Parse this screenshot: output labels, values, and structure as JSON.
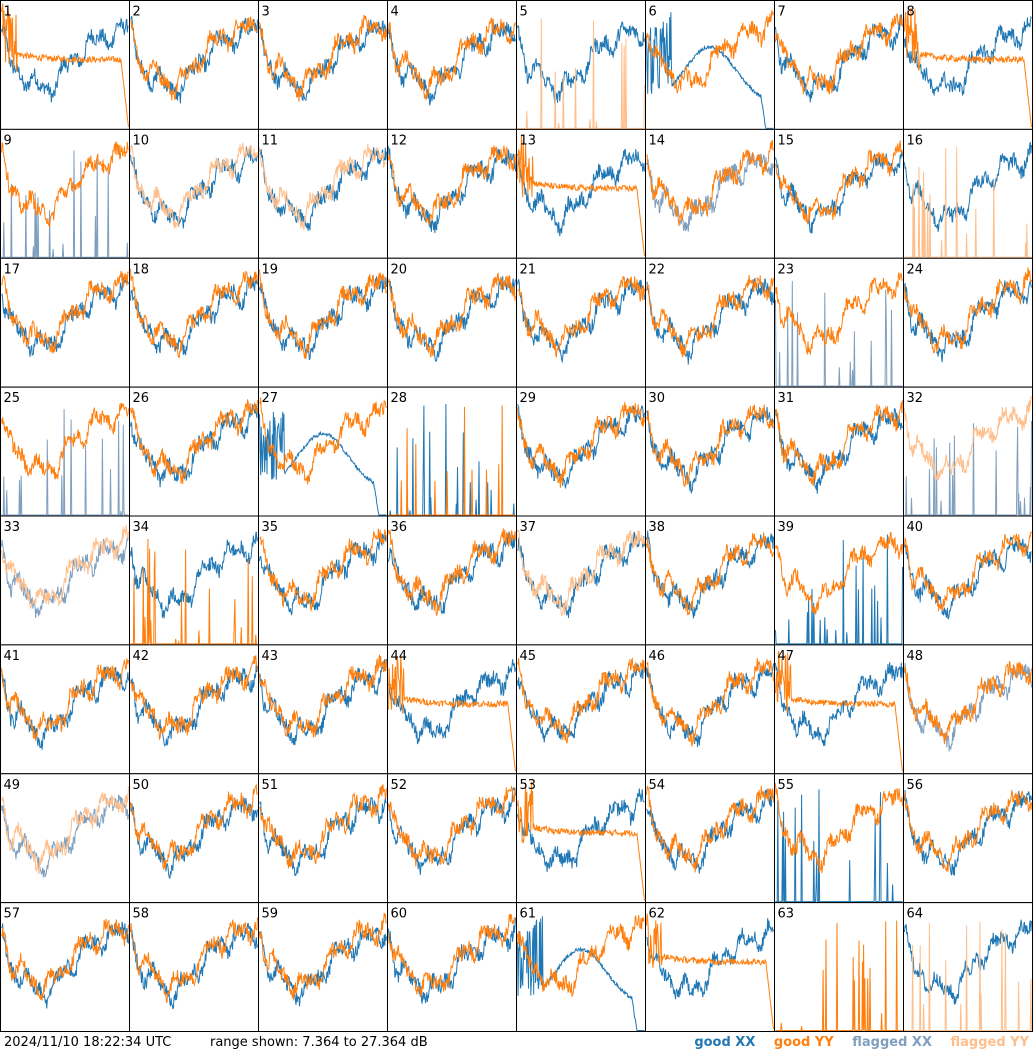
{
  "footer": {
    "timestamp": "2024/11/10 18:22:34 UTC",
    "range_label": "range shown:",
    "range_text": "7.364 to 27.364 dB"
  },
  "chart_data": {
    "type": "line",
    "grid": {
      "rows": 8,
      "cols": 8
    },
    "ylim": [
      7.364,
      27.364
    ],
    "yunit": "dB",
    "legend": [
      {
        "name": "good XX",
        "color": "#1f77b4",
        "key": "gx"
      },
      {
        "name": "good YY",
        "color": "#ff7f0e",
        "key": "gy"
      },
      {
        "name": "flagged XX",
        "color": "#7f9fbf",
        "key": "fx"
      },
      {
        "name": "flagged YY",
        "color": "#ffbf8c",
        "key": "fy"
      }
    ],
    "legend_placement": "bottom-right",
    "panels": [
      {
        "label": "1",
        "xx": "good",
        "yy": "good",
        "xx_shape": "normal",
        "yy_shape": "rolloff"
      },
      {
        "label": "2",
        "xx": "good",
        "yy": "good",
        "xx_shape": "normal",
        "yy_shape": "normal"
      },
      {
        "label": "3",
        "xx": "good",
        "yy": "good",
        "xx_shape": "normal",
        "yy_shape": "normal"
      },
      {
        "label": "4",
        "xx": "good",
        "yy": "good",
        "xx_shape": "normal",
        "yy_shape": "normal"
      },
      {
        "label": "5",
        "xx": "good",
        "yy": "flagged",
        "xx_shape": "normal",
        "yy_shape": "spikes"
      },
      {
        "label": "6",
        "xx": "good",
        "yy": "good",
        "xx_shape": "hump",
        "yy_shape": "normal"
      },
      {
        "label": "7",
        "xx": "good",
        "yy": "good",
        "xx_shape": "normal",
        "yy_shape": "normal"
      },
      {
        "label": "8",
        "xx": "good",
        "yy": "good",
        "xx_shape": "normal",
        "yy_shape": "rolloff"
      },
      {
        "label": "9",
        "xx": "flagged",
        "yy": "good",
        "xx_shape": "spikes",
        "yy_shape": "normal"
      },
      {
        "label": "10",
        "xx": "good",
        "yy": "flagged",
        "xx_shape": "normal",
        "yy_shape": "normal"
      },
      {
        "label": "11",
        "xx": "good",
        "yy": "flagged",
        "xx_shape": "normal",
        "yy_shape": "normal"
      },
      {
        "label": "12",
        "xx": "good",
        "yy": "good",
        "xx_shape": "normal",
        "yy_shape": "normal"
      },
      {
        "label": "13",
        "xx": "good",
        "yy": "good",
        "xx_shape": "normal",
        "yy_shape": "rolloff"
      },
      {
        "label": "14",
        "xx": "flagged",
        "yy": "good",
        "xx_shape": "normal",
        "yy_shape": "normal"
      },
      {
        "label": "15",
        "xx": "good",
        "yy": "good",
        "xx_shape": "normal",
        "yy_shape": "normal"
      },
      {
        "label": "16",
        "xx": "good",
        "yy": "flagged",
        "xx_shape": "normal",
        "yy_shape": "spikes"
      },
      {
        "label": "17",
        "xx": "good",
        "yy": "good",
        "xx_shape": "normal",
        "yy_shape": "normal"
      },
      {
        "label": "18",
        "xx": "good",
        "yy": "good",
        "xx_shape": "normal",
        "yy_shape": "normal"
      },
      {
        "label": "19",
        "xx": "good",
        "yy": "good",
        "xx_shape": "normal",
        "yy_shape": "normal"
      },
      {
        "label": "20",
        "xx": "good",
        "yy": "good",
        "xx_shape": "normal",
        "yy_shape": "normal"
      },
      {
        "label": "21",
        "xx": "good",
        "yy": "good",
        "xx_shape": "normal",
        "yy_shape": "normal"
      },
      {
        "label": "22",
        "xx": "good",
        "yy": "good",
        "xx_shape": "normal",
        "yy_shape": "normal"
      },
      {
        "label": "23",
        "xx": "flagged",
        "yy": "good",
        "xx_shape": "spikes",
        "yy_shape": "normal"
      },
      {
        "label": "24",
        "xx": "good",
        "yy": "good",
        "xx_shape": "normal",
        "yy_shape": "normal"
      },
      {
        "label": "25",
        "xx": "flagged",
        "yy": "good",
        "xx_shape": "spikes",
        "yy_shape": "normal"
      },
      {
        "label": "26",
        "xx": "good",
        "yy": "good",
        "xx_shape": "normal",
        "yy_shape": "normal"
      },
      {
        "label": "27",
        "xx": "good",
        "yy": "good",
        "xx_shape": "hump",
        "yy_shape": "normal"
      },
      {
        "label": "28",
        "xx": "good",
        "yy": "good",
        "xx_shape": "spikes",
        "yy_shape": "spikes"
      },
      {
        "label": "29",
        "xx": "good",
        "yy": "good",
        "xx_shape": "normal",
        "yy_shape": "normal"
      },
      {
        "label": "30",
        "xx": "good",
        "yy": "good",
        "xx_shape": "normal",
        "yy_shape": "normal"
      },
      {
        "label": "31",
        "xx": "good",
        "yy": "good",
        "xx_shape": "normal",
        "yy_shape": "normal"
      },
      {
        "label": "32",
        "xx": "flagged",
        "yy": "flagged",
        "xx_shape": "spikes",
        "yy_shape": "normal"
      },
      {
        "label": "33",
        "xx": "flagged",
        "yy": "flagged",
        "xx_shape": "normal",
        "yy_shape": "normal"
      },
      {
        "label": "34",
        "xx": "good",
        "yy": "good",
        "xx_shape": "normal",
        "yy_shape": "spikes"
      },
      {
        "label": "35",
        "xx": "good",
        "yy": "good",
        "xx_shape": "normal",
        "yy_shape": "normal"
      },
      {
        "label": "36",
        "xx": "good",
        "yy": "good",
        "xx_shape": "normal",
        "yy_shape": "normal"
      },
      {
        "label": "37",
        "xx": "good",
        "yy": "flagged",
        "xx_shape": "normal",
        "yy_shape": "normal"
      },
      {
        "label": "38",
        "xx": "good",
        "yy": "good",
        "xx_shape": "normal",
        "yy_shape": "normal"
      },
      {
        "label": "39",
        "xx": "good",
        "yy": "good",
        "xx_shape": "spikes",
        "yy_shape": "normal"
      },
      {
        "label": "40",
        "xx": "good",
        "yy": "good",
        "xx_shape": "normal",
        "yy_shape": "normal"
      },
      {
        "label": "41",
        "xx": "good",
        "yy": "good",
        "xx_shape": "normal",
        "yy_shape": "normal"
      },
      {
        "label": "42",
        "xx": "good",
        "yy": "good",
        "xx_shape": "normal",
        "yy_shape": "normal"
      },
      {
        "label": "43",
        "xx": "good",
        "yy": "good",
        "xx_shape": "normal",
        "yy_shape": "normal"
      },
      {
        "label": "44",
        "xx": "good",
        "yy": "good",
        "xx_shape": "normal",
        "yy_shape": "rolloff"
      },
      {
        "label": "45",
        "xx": "good",
        "yy": "good",
        "xx_shape": "normal",
        "yy_shape": "normal"
      },
      {
        "label": "46",
        "xx": "good",
        "yy": "good",
        "xx_shape": "normal",
        "yy_shape": "normal"
      },
      {
        "label": "47",
        "xx": "good",
        "yy": "good",
        "xx_shape": "normal",
        "yy_shape": "rolloff"
      },
      {
        "label": "48",
        "xx": "flagged",
        "yy": "good",
        "xx_shape": "normal",
        "yy_shape": "normal"
      },
      {
        "label": "49",
        "xx": "flagged",
        "yy": "flagged",
        "xx_shape": "normal",
        "yy_shape": "normal"
      },
      {
        "label": "50",
        "xx": "good",
        "yy": "good",
        "xx_shape": "normal",
        "yy_shape": "normal"
      },
      {
        "label": "51",
        "xx": "good",
        "yy": "good",
        "xx_shape": "normal",
        "yy_shape": "normal"
      },
      {
        "label": "52",
        "xx": "good",
        "yy": "good",
        "xx_shape": "normal",
        "yy_shape": "normal"
      },
      {
        "label": "53",
        "xx": "good",
        "yy": "good",
        "xx_shape": "normal",
        "yy_shape": "rolloff"
      },
      {
        "label": "54",
        "xx": "good",
        "yy": "good",
        "xx_shape": "normal",
        "yy_shape": "normal"
      },
      {
        "label": "55",
        "xx": "good",
        "yy": "good",
        "xx_shape": "spikes",
        "yy_shape": "normal"
      },
      {
        "label": "56",
        "xx": "good",
        "yy": "good",
        "xx_shape": "normal",
        "yy_shape": "normal"
      },
      {
        "label": "57",
        "xx": "good",
        "yy": "good",
        "xx_shape": "normal",
        "yy_shape": "normal"
      },
      {
        "label": "58",
        "xx": "good",
        "yy": "good",
        "xx_shape": "normal",
        "yy_shape": "normal"
      },
      {
        "label": "59",
        "xx": "good",
        "yy": "good",
        "xx_shape": "normal",
        "yy_shape": "normal"
      },
      {
        "label": "60",
        "xx": "good",
        "yy": "good",
        "xx_shape": "normal",
        "yy_shape": "normal"
      },
      {
        "label": "61",
        "xx": "good",
        "yy": "good",
        "xx_shape": "hump",
        "yy_shape": "normal"
      },
      {
        "label": "62",
        "xx": "good",
        "yy": "good",
        "xx_shape": "normal",
        "yy_shape": "rolloff"
      },
      {
        "label": "63",
        "xx": "good",
        "yy": "good",
        "xx_shape": "none",
        "yy_shape": "spikes"
      },
      {
        "label": "64",
        "xx": "good",
        "yy": "flagged",
        "xx_shape": "normal",
        "yy_shape": "spikes"
      }
    ]
  }
}
